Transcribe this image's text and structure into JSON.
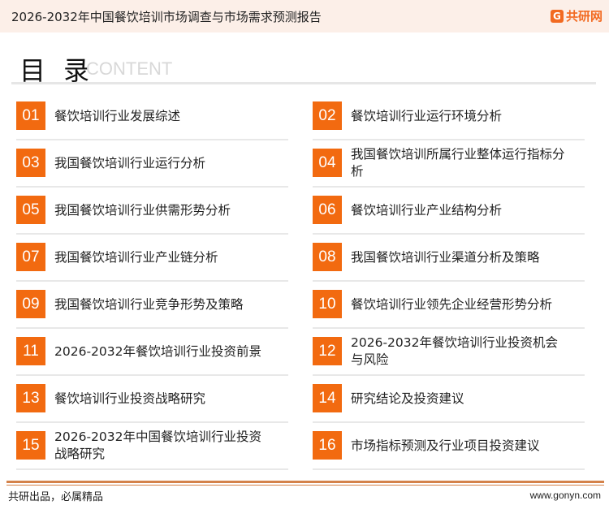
{
  "header": {
    "title": "2026-2032年中国餐饮培训市场调查与市场需求预测报告",
    "logo_text": "共研网",
    "logo_mark": "G"
  },
  "toc": {
    "title": "目 录",
    "subtitle": "CONTENT",
    "items": [
      {
        "num": "01",
        "label": "餐饮培训行业发展综述"
      },
      {
        "num": "02",
        "label": "餐饮培训行业运行环境分析"
      },
      {
        "num": "03",
        "label": "我国餐饮培训行业运行分析"
      },
      {
        "num": "04",
        "label": "我国餐饮培训所属行业整体运行指标分析"
      },
      {
        "num": "05",
        "label": "我国餐饮培训行业供需形势分析"
      },
      {
        "num": "06",
        "label": "餐饮培训行业产业结构分析"
      },
      {
        "num": "07",
        "label": "我国餐饮培训行业产业链分析"
      },
      {
        "num": "08",
        "label": "我国餐饮培训行业渠道分析及策略"
      },
      {
        "num": "09",
        "label": "我国餐饮培训行业竞争形势及策略"
      },
      {
        "num": "10",
        "label": "餐饮培训行业领先企业经营形势分析"
      },
      {
        "num": "11",
        "label": "2026-2032年餐饮培训行业投资前景"
      },
      {
        "num": "12",
        "label": "2026-2032年餐饮培训行业投资机会与风险"
      },
      {
        "num": "13",
        "label": "餐饮培训行业投资战略研究"
      },
      {
        "num": "14",
        "label": "研究结论及投资建议"
      },
      {
        "num": "15",
        "label": "2026-2032年中国餐饮培训行业投资战略研究"
      },
      {
        "num": "16",
        "label": "市场指标预测及行业项目投资建议"
      }
    ]
  },
  "footer": {
    "slogan": "共研出品，必属精品",
    "url": "www.gonyn.com"
  },
  "colors": {
    "accent": "#f26a10",
    "header_bg": "#fcefe8",
    "footer_line": "#d4824a"
  }
}
